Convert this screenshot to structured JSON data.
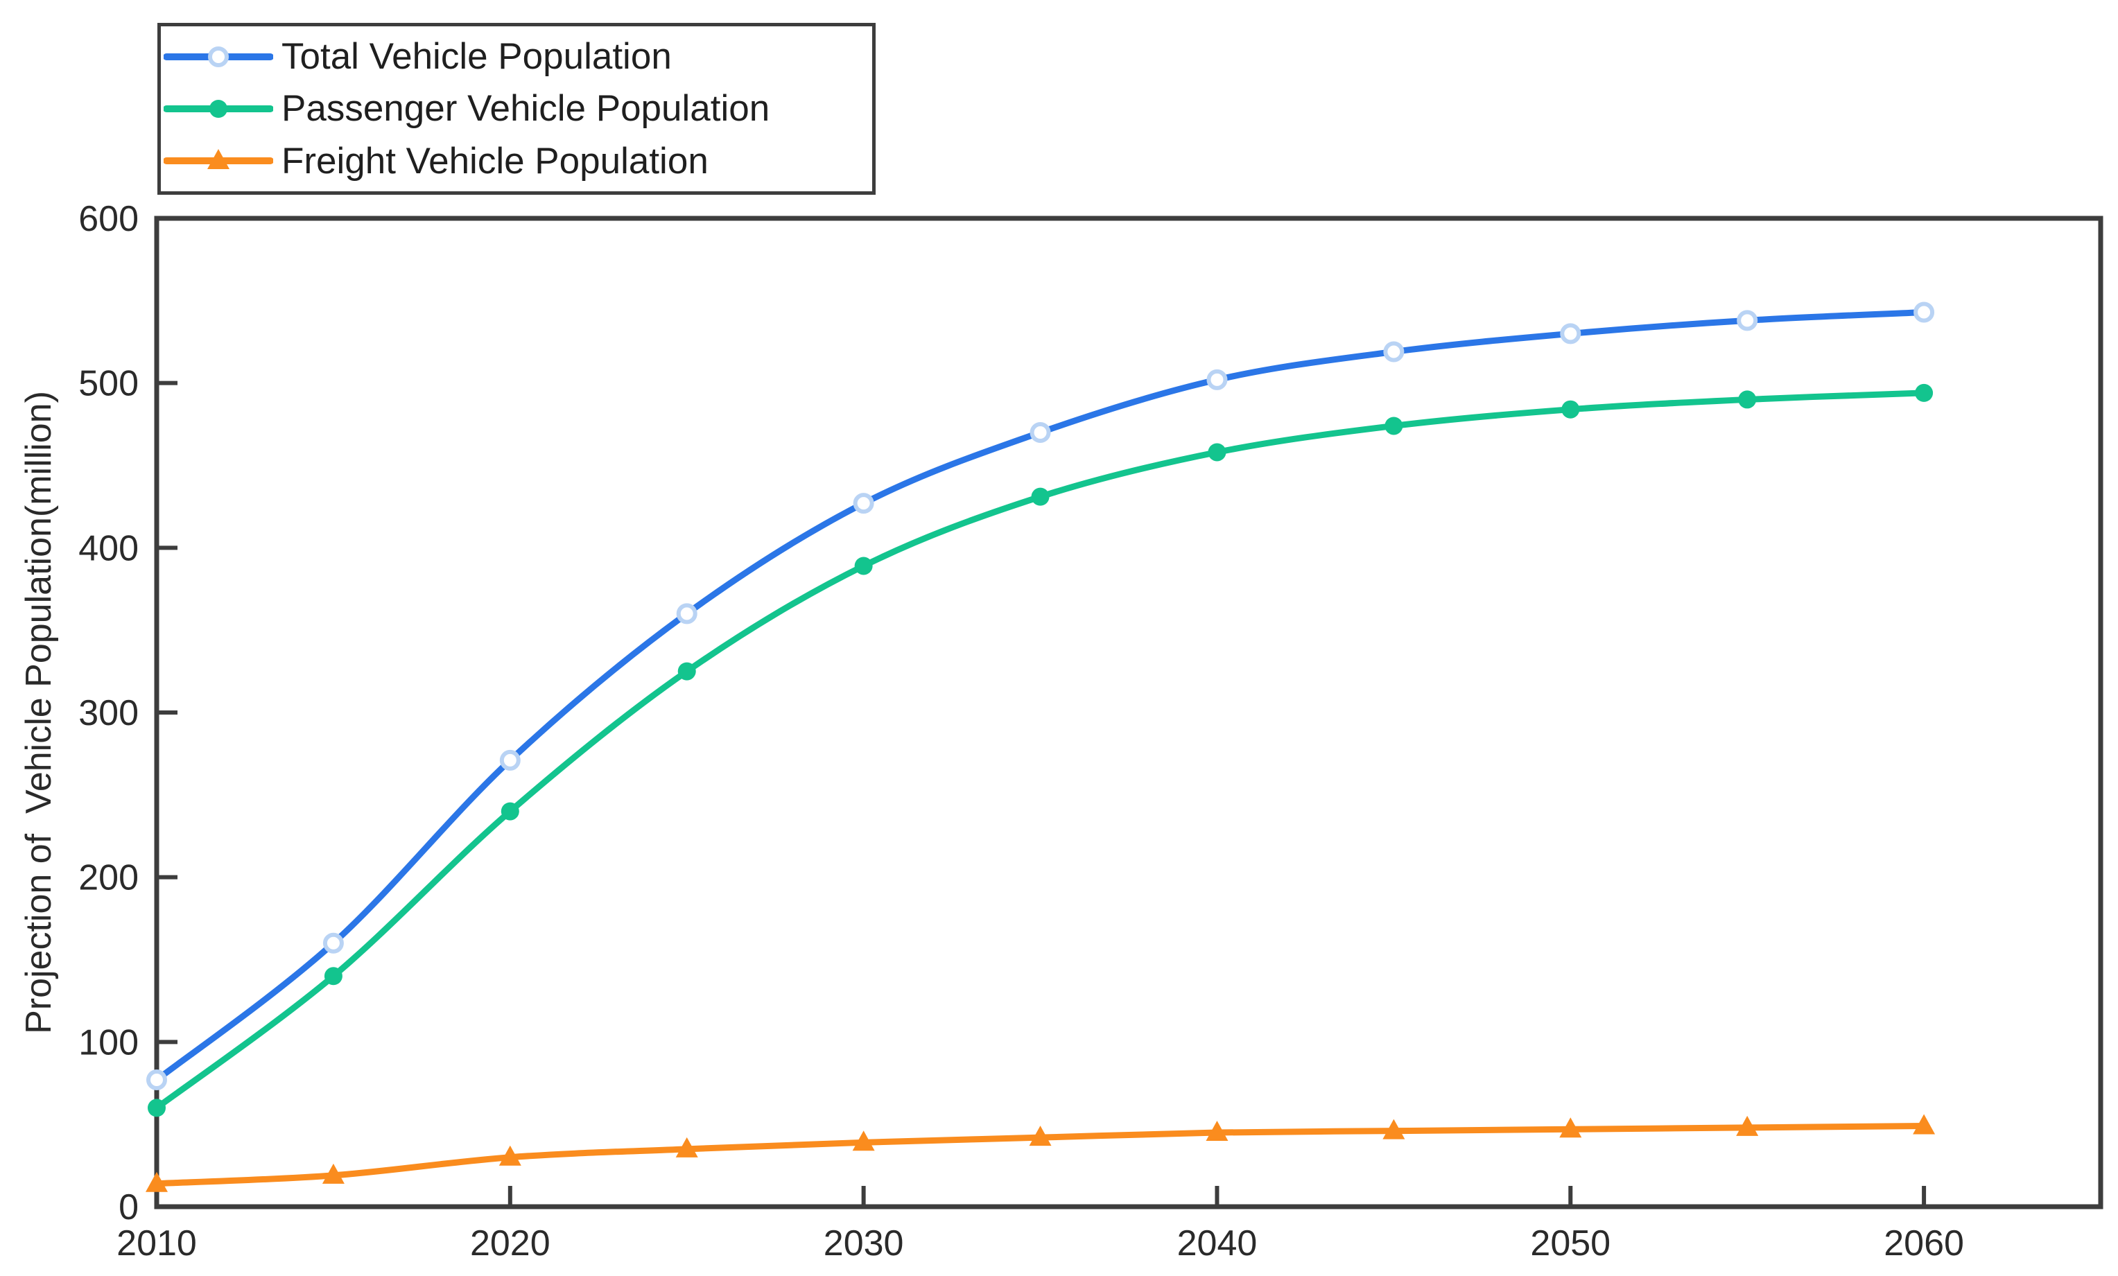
{
  "figure": {
    "background": "#ffffff",
    "axis_color": "#3d3d3d",
    "tick_text_color": "#2a2a2a",
    "legend_text_color": "#1f1f1f",
    "legend_border_color": "#3d3d3d"
  },
  "chart_data": {
    "type": "line",
    "title": "",
    "xlabel": "",
    "ylabel": "Projection of  Vehicle Population(million)",
    "x": [
      2010,
      2015,
      2020,
      2025,
      2030,
      2035,
      2040,
      2045,
      2050,
      2055,
      2060
    ],
    "series": [
      {
        "name": "Total Vehicle Population",
        "color": "#2b76e7",
        "marker": "circle-open",
        "marker_color": "#b9d3f4",
        "values": [
          77,
          160,
          271,
          360,
          427,
          470,
          502,
          519,
          530,
          538,
          543
        ]
      },
      {
        "name": "Passenger Vehicle Population",
        "color": "#13c48e",
        "marker": "circle",
        "marker_color": "#13c48e",
        "values": [
          60,
          140,
          240,
          325,
          389,
          431,
          458,
          474,
          484,
          490,
          494
        ]
      },
      {
        "name": "Freight Vehicle Population",
        "color": "#fa8c1e",
        "marker": "triangle-up",
        "marker_color": "#fa8c1e",
        "values": [
          14,
          19,
          30,
          35,
          39,
          42,
          45,
          46,
          47,
          48,
          49
        ]
      }
    ],
    "xlim": [
      2010,
      2065
    ],
    "ylim": [
      0,
      600
    ],
    "x_ticks": [
      2010,
      2020,
      2030,
      2040,
      2050,
      2060
    ],
    "y_ticks": [
      0,
      100,
      200,
      300,
      400,
      500,
      600
    ],
    "grid": false,
    "legend_position": "top-left"
  }
}
